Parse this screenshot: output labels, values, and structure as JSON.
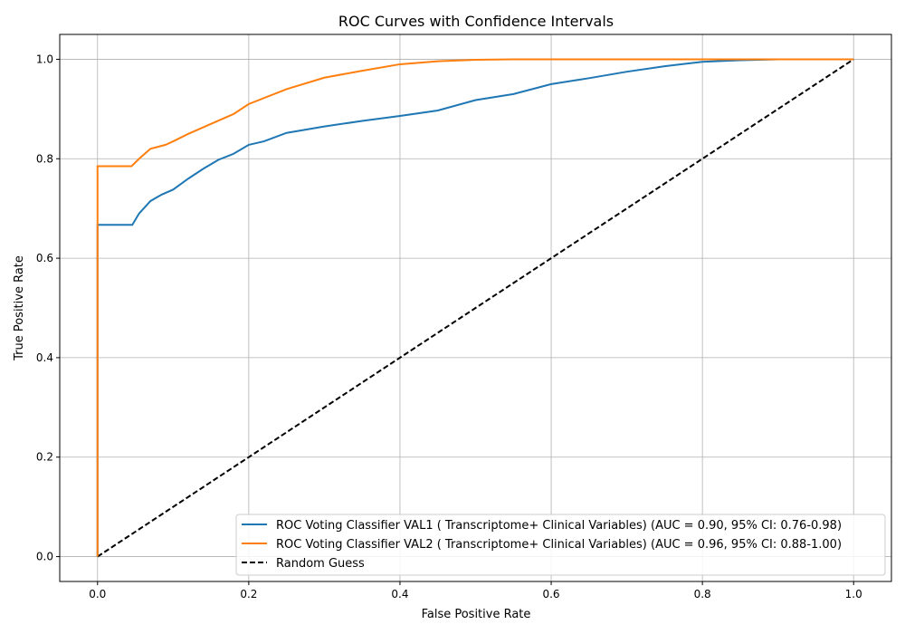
{
  "chart_data": {
    "type": "line",
    "title": "ROC Curves with Confidence Intervals",
    "xlabel": "False Positive Rate",
    "ylabel": "True Positive Rate",
    "xlim": [
      -0.05,
      1.05
    ],
    "ylim": [
      -0.05,
      1.05
    ],
    "xticks": [
      0.0,
      0.2,
      0.4,
      0.6,
      0.8,
      1.0
    ],
    "yticks": [
      0.0,
      0.2,
      0.4,
      0.6,
      0.8,
      1.0
    ],
    "xtick_labels": [
      "0.0",
      "0.2",
      "0.4",
      "0.6",
      "0.8",
      "1.0"
    ],
    "ytick_labels": [
      "0.0",
      "0.2",
      "0.4",
      "0.6",
      "0.8",
      "1.0"
    ],
    "grid": true,
    "legend_position": "lower-right",
    "series": [
      {
        "name": "ROC Voting Classifier VAL1 ( Transcriptome+ Clinical Variables) (AUC = 0.90, 95% CI: 0.76-0.98)",
        "color": "#1f77b4",
        "dash": "solid",
        "x": [
          0,
          0,
          0.046,
          0.055,
          0.07,
          0.085,
          0.1,
          0.12,
          0.14,
          0.16,
          0.18,
          0.2,
          0.22,
          0.25,
          0.3,
          0.35,
          0.4,
          0.45,
          0.5,
          0.55,
          0.6,
          0.65,
          0.7,
          0.75,
          0.8,
          0.85,
          0.9,
          1.0
        ],
        "y": [
          0,
          0.667,
          0.667,
          0.69,
          0.715,
          0.728,
          0.738,
          0.76,
          0.78,
          0.798,
          0.81,
          0.828,
          0.835,
          0.852,
          0.865,
          0.876,
          0.886,
          0.897,
          0.918,
          0.93,
          0.95,
          0.962,
          0.975,
          0.986,
          0.995,
          0.998,
          1.0,
          1.0
        ]
      },
      {
        "name": "ROC Voting Classifier VAL2 ( Transcriptome+ Clinical Variables) (AUC = 0.96, 95% CI: 0.88-1.00)",
        "color": "#ff7f0e",
        "dash": "solid",
        "x": [
          0,
          0,
          0.045,
          0.055,
          0.07,
          0.09,
          0.1,
          0.12,
          0.15,
          0.18,
          0.2,
          0.25,
          0.3,
          0.35,
          0.4,
          0.45,
          0.5,
          0.55,
          1.0
        ],
        "y": [
          0,
          0.785,
          0.785,
          0.8,
          0.82,
          0.828,
          0.835,
          0.85,
          0.87,
          0.89,
          0.91,
          0.94,
          0.963,
          0.977,
          0.99,
          0.996,
          0.999,
          1.0,
          1.0
        ]
      },
      {
        "name": "Random Guess",
        "color": "#000000",
        "dash": "dashed",
        "x": [
          0,
          1
        ],
        "y": [
          0,
          1
        ]
      }
    ]
  }
}
